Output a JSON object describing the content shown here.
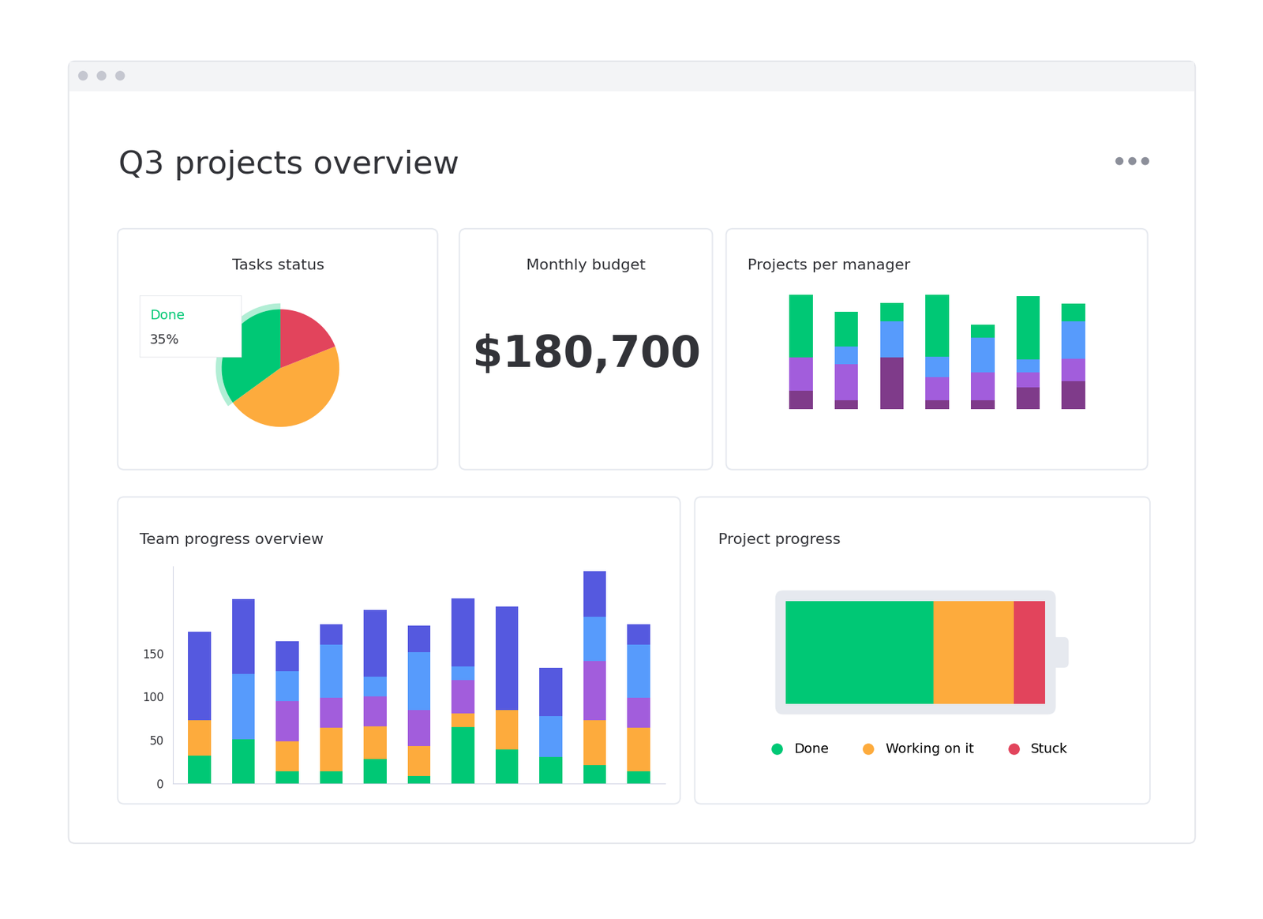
{
  "title": "Q3 projects overview",
  "chart_data": [
    {
      "type": "pie",
      "title": "Tasks status",
      "categories": [
        "Done",
        null,
        null
      ],
      "values": [
        35,
        46,
        19
      ],
      "value_labels": [
        "35%",
        null,
        null
      ],
      "colors": [
        "#00c875",
        "#fdab3d",
        "#e2445c"
      ]
    },
    {
      "type": "number",
      "title": "Monthly budget",
      "values": [
        180700
      ],
      "value_labels": [
        "$180,700"
      ]
    },
    {
      "type": "bar",
      "title": "Projects per manager",
      "stacked": true,
      "tick_labels": false,
      "categories": [
        null,
        null,
        null,
        null,
        null,
        null,
        null
      ],
      "ylim": [
        0,
        145
      ],
      "series": [
        {
          "color": "#7f3b8a",
          "values": [
            23,
            11,
            64,
            11,
            11,
            27,
            35
          ]
        },
        {
          "color": "#a25ddc",
          "values": [
            41,
            45,
            0,
            29,
            35,
            19,
            28
          ]
        },
        {
          "color": "#579bfc",
          "values": [
            0,
            22,
            45,
            25,
            43,
            16,
            46
          ]
        },
        {
          "color": "#00c875",
          "values": [
            78,
            43,
            23,
            77,
            16,
            78,
            22
          ]
        }
      ]
    },
    {
      "type": "bar",
      "title": "Team progress overview",
      "stacked": true,
      "tick_labels": "y",
      "categories": [
        null,
        null,
        null,
        null,
        null,
        null,
        null,
        null,
        null,
        null,
        null
      ],
      "ylim": [
        0,
        250
      ],
      "yticks": [
        0,
        50,
        100,
        150
      ],
      "series": [
        {
          "color": "#00c875",
          "values": [
            32,
            51,
            14,
            14,
            28,
            9,
            65,
            39,
            31,
            21,
            14
          ]
        },
        {
          "color": "#fdab3d",
          "values": [
            41,
            0,
            35,
            50,
            38,
            34,
            16,
            46,
            0,
            52,
            50
          ]
        },
        {
          "color": "#a25ddc",
          "values": [
            0,
            0,
            46,
            35,
            34,
            42,
            38,
            0,
            0,
            68,
            35
          ]
        },
        {
          "color": "#579bfc",
          "values": [
            0,
            75,
            34,
            61,
            23,
            66,
            16,
            0,
            47,
            51,
            61
          ]
        },
        {
          "color": "#5559df",
          "values": [
            102,
            86,
            35,
            23,
            77,
            31,
            78,
            119,
            55,
            52,
            23
          ]
        }
      ]
    },
    {
      "type": "bar",
      "title": "Project progress",
      "orientation": "horizontal",
      "stacked": true,
      "tick_labels": false,
      "categories": [
        null
      ],
      "xlim": [
        0,
        100
      ],
      "legend": "lower center",
      "series": [
        {
          "name": "Done",
          "color": "#00c875",
          "values": [
            57
          ]
        },
        {
          "name": "Working on it",
          "color": "#fdab3d",
          "values": [
            31
          ]
        },
        {
          "name": "Stuck",
          "color": "#e2445c",
          "values": [
            12
          ]
        }
      ]
    }
  ]
}
